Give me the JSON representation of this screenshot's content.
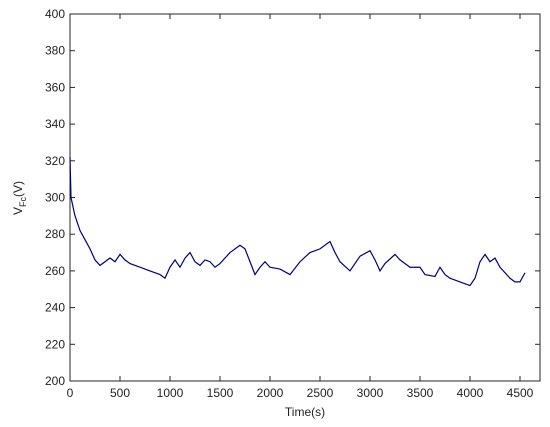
{
  "chart_data": {
    "type": "line",
    "xlabel": "Time(s)",
    "ylabel": "V",
    "ylabel_sub": "Fc",
    "ylabel_unit": "(V)",
    "xlim": [
      0,
      4700
    ],
    "xticks": [
      0,
      500,
      1000,
      1500,
      2000,
      2500,
      3000,
      3500,
      4000,
      4500
    ],
    "ylim": [
      200,
      400
    ],
    "yticks": [
      200,
      220,
      240,
      260,
      280,
      300,
      320,
      340,
      360,
      380,
      400
    ],
    "series": [
      {
        "color": "#000080",
        "x": [
          0,
          10,
          50,
          100,
          150,
          200,
          250,
          300,
          350,
          400,
          450,
          500,
          550,
          600,
          700,
          800,
          900,
          950,
          1000,
          1050,
          1100,
          1150,
          1200,
          1250,
          1300,
          1350,
          1400,
          1450,
          1500,
          1600,
          1700,
          1750,
          1800,
          1850,
          1900,
          1950,
          2000,
          2100,
          2200,
          2300,
          2400,
          2500,
          2600,
          2650,
          2700,
          2800,
          2900,
          3000,
          3050,
          3100,
          3150,
          3250,
          3300,
          3400,
          3500,
          3550,
          3650,
          3700,
          3750,
          3800,
          3900,
          4000,
          4050,
          4100,
          4150,
          4200,
          4250,
          4300,
          4400,
          4450,
          4500,
          4550
        ],
        "values": [
          322,
          300,
          290,
          282,
          277,
          272,
          266,
          263,
          265,
          267,
          265,
          269,
          266,
          264,
          262,
          260,
          258,
          256,
          262,
          266,
          262,
          267,
          270,
          265,
          263,
          266,
          265,
          262,
          264,
          270,
          274,
          272,
          265,
          258,
          262,
          265,
          262,
          261,
          258,
          265,
          270,
          272,
          276,
          270,
          265,
          260,
          268,
          271,
          266,
          260,
          264,
          269,
          266,
          262,
          262,
          258,
          257,
          262,
          258,
          256,
          254,
          252,
          256,
          265,
          269,
          265,
          267,
          262,
          256,
          254,
          254,
          259
        ]
      }
    ]
  }
}
